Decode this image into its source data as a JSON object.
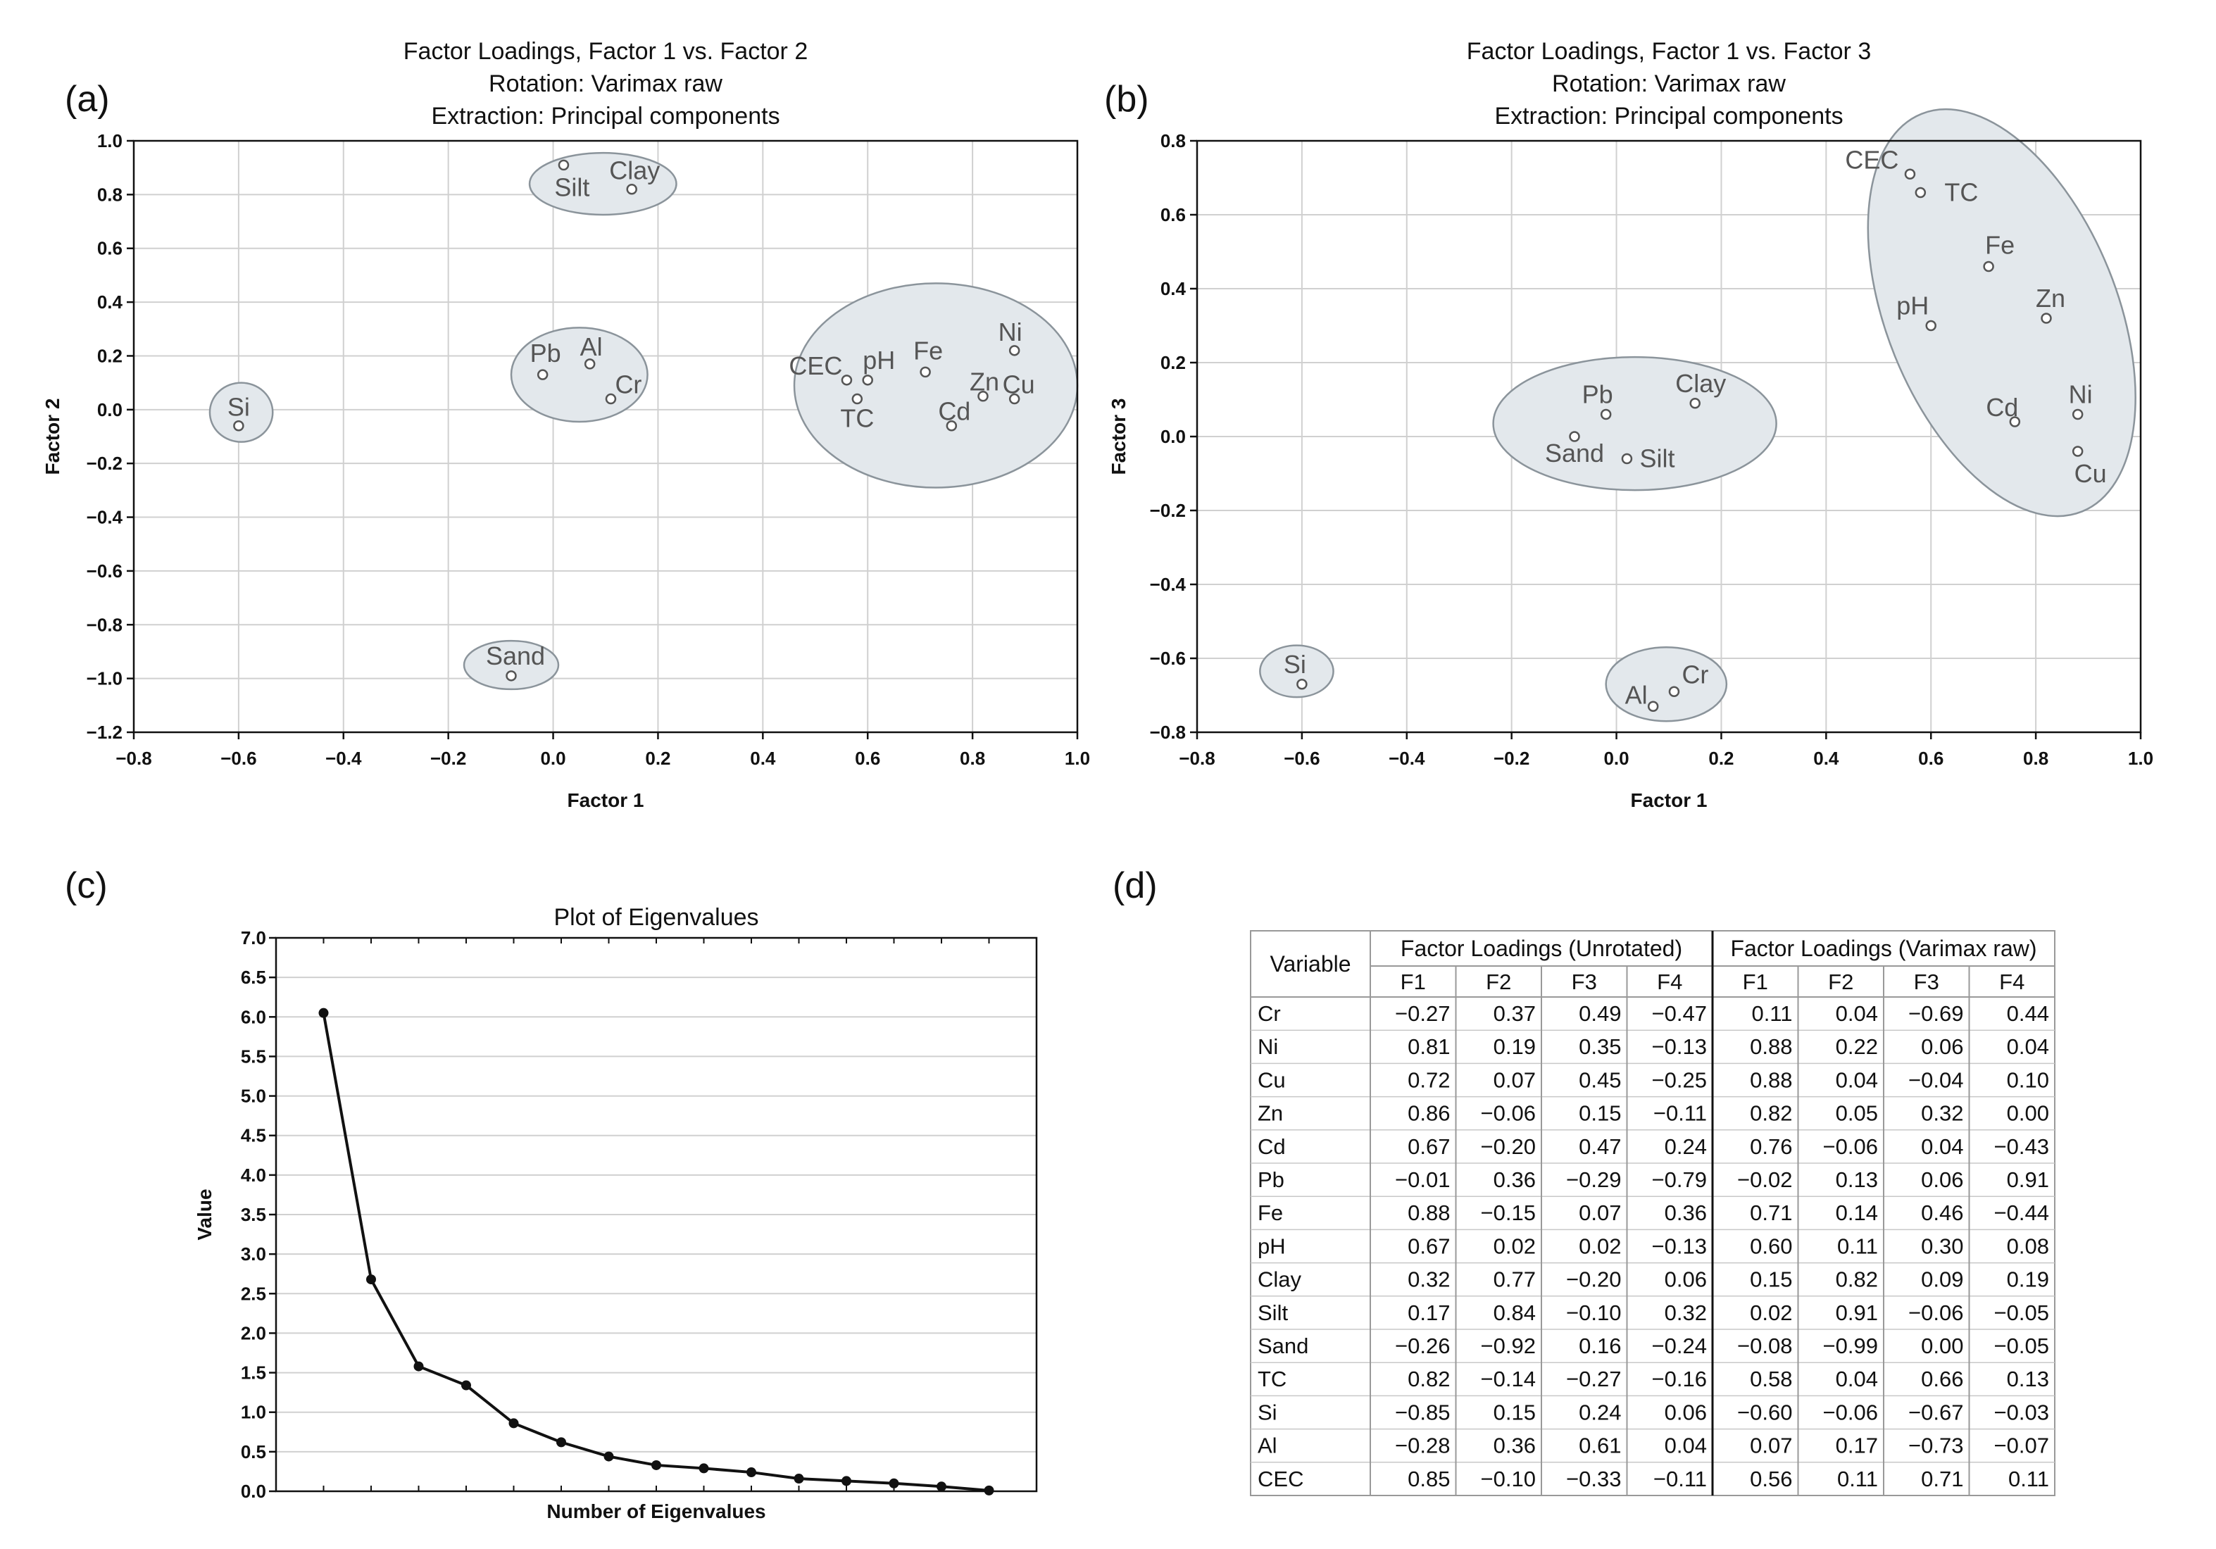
{
  "panel_labels": {
    "a": "(a)",
    "b": "(b)",
    "c": "(c)",
    "d": "(d)"
  },
  "chart_data": [
    {
      "id": "a",
      "type": "scatter",
      "title": [
        "Factor Loadings, Factor 1 vs. Factor 2",
        "Rotation: Varimax raw",
        "Extraction: Principal components"
      ],
      "xlabel": "Factor 1",
      "ylabel": "Factor 2",
      "xlim": [
        -0.8,
        1.0
      ],
      "ylim": [
        -1.2,
        1.0
      ],
      "xticks": [
        "−0.8",
        "−0.6",
        "−0.4",
        "−0.2",
        "0.0",
        "0.2",
        "0.4",
        "0.6",
        "0.8",
        "1.0"
      ],
      "yticks": [
        "−1.2",
        "−1.0",
        "−0.8",
        "−0.6",
        "−0.4",
        "−0.2",
        "0.0",
        "0.2",
        "0.4",
        "0.6",
        "0.8",
        "1.0"
      ],
      "grid": true,
      "points": [
        {
          "label": "Cr",
          "x": 0.11,
          "y": 0.04
        },
        {
          "label": "Ni",
          "x": 0.88,
          "y": 0.22
        },
        {
          "label": "Cu",
          "x": 0.88,
          "y": 0.04
        },
        {
          "label": "Zn",
          "x": 0.82,
          "y": 0.05
        },
        {
          "label": "Cd",
          "x": 0.76,
          "y": -0.06
        },
        {
          "label": "Pb",
          "x": -0.02,
          "y": 0.13
        },
        {
          "label": "Fe",
          "x": 0.71,
          "y": 0.14
        },
        {
          "label": "pH",
          "x": 0.6,
          "y": 0.11
        },
        {
          "label": "Clay",
          "x": 0.15,
          "y": 0.82
        },
        {
          "label": "Silt",
          "x": 0.02,
          "y": 0.91
        },
        {
          "label": "Sand",
          "x": -0.08,
          "y": -0.99
        },
        {
          "label": "TC",
          "x": 0.58,
          "y": 0.04
        },
        {
          "label": "Si",
          "x": -0.6,
          "y": -0.06
        },
        {
          "label": "Al",
          "x": 0.07,
          "y": 0.17
        },
        {
          "label": "CEC",
          "x": 0.56,
          "y": 0.11
        }
      ],
      "clusters": [
        {
          "cx": 0.095,
          "cy": 0.84,
          "rx": 0.14,
          "ry": 0.115,
          "angle": 0
        },
        {
          "cx": 0.05,
          "cy": 0.13,
          "rx": 0.13,
          "ry": 0.175,
          "angle": 0
        },
        {
          "cx": 0.73,
          "cy": 0.09,
          "rx": 0.27,
          "ry": 0.38,
          "angle": 0
        },
        {
          "cx": -0.595,
          "cy": -0.01,
          "rx": 0.06,
          "ry": 0.11,
          "angle": 0
        },
        {
          "cx": -0.08,
          "cy": -0.95,
          "rx": 0.09,
          "ry": 0.09,
          "angle": 0
        }
      ]
    },
    {
      "id": "b",
      "type": "scatter",
      "title": [
        "Factor Loadings, Factor 1 vs. Factor 3",
        "Rotation: Varimax raw",
        "Extraction: Principal components"
      ],
      "xlabel": "Factor 1",
      "ylabel": "Factor 3",
      "xlim": [
        -0.8,
        1.0
      ],
      "ylim": [
        -0.8,
        0.8
      ],
      "xticks": [
        "−0.8",
        "−0.6",
        "−0.4",
        "−0.2",
        "0.0",
        "0.2",
        "0.4",
        "0.6",
        "0.8",
        "1.0"
      ],
      "yticks": [
        "−0.8",
        "−0.6",
        "−0.4",
        "−0.2",
        "0.0",
        "0.2",
        "0.4",
        "0.6",
        "0.8"
      ],
      "grid": true,
      "points": [
        {
          "label": "Cr",
          "x": 0.11,
          "y": -0.69
        },
        {
          "label": "Ni",
          "x": 0.88,
          "y": 0.06
        },
        {
          "label": "Cu",
          "x": 0.88,
          "y": -0.04
        },
        {
          "label": "Zn",
          "x": 0.82,
          "y": 0.32
        },
        {
          "label": "Cd",
          "x": 0.76,
          "y": 0.04
        },
        {
          "label": "Pb",
          "x": -0.02,
          "y": 0.06
        },
        {
          "label": "Fe",
          "x": 0.71,
          "y": 0.46
        },
        {
          "label": "pH",
          "x": 0.6,
          "y": 0.3
        },
        {
          "label": "Clay",
          "x": 0.15,
          "y": 0.09
        },
        {
          "label": "Silt",
          "x": 0.02,
          "y": -0.06
        },
        {
          "label": "Sand",
          "x": -0.08,
          "y": 0.0
        },
        {
          "label": "TC",
          "x": 0.58,
          "y": 0.66
        },
        {
          "label": "Si",
          "x": -0.6,
          "y": -0.67
        },
        {
          "label": "Al",
          "x": 0.07,
          "y": -0.73
        },
        {
          "label": "CEC",
          "x": 0.56,
          "y": 0.71
        }
      ],
      "clusters": [
        {
          "cx": 0.035,
          "cy": 0.035,
          "rx": 0.27,
          "ry": 0.18,
          "angle": 0
        },
        {
          "cx": 0.735,
          "cy": 0.335,
          "rx": 0.22,
          "ry": 0.58,
          "angle": -22
        },
        {
          "cx": -0.61,
          "cy": -0.635,
          "rx": 0.07,
          "ry": 0.07,
          "angle": 0
        },
        {
          "cx": 0.095,
          "cy": -0.67,
          "rx": 0.115,
          "ry": 0.1,
          "angle": 0
        }
      ]
    },
    {
      "id": "c",
      "type": "line",
      "title": "Plot of Eigenvalues",
      "xlabel": "Number of Eigenvalues",
      "ylabel": "Value",
      "ylim": [
        0,
        7.0
      ],
      "yticks": [
        "0.0",
        "0.5",
        "1.0",
        "1.5",
        "2.0",
        "2.5",
        "3.0",
        "3.5",
        "4.0",
        "4.5",
        "5.0",
        "5.5",
        "6.0",
        "6.5",
        "7.0"
      ],
      "grid": true,
      "x": [
        1,
        2,
        3,
        4,
        5,
        6,
        7,
        8,
        9,
        10,
        11,
        12,
        13,
        14,
        15
      ],
      "values": [
        6.05,
        2.68,
        1.58,
        1.34,
        0.86,
        0.62,
        0.44,
        0.33,
        0.29,
        0.24,
        0.16,
        0.13,
        0.1,
        0.06,
        0.01
      ]
    },
    {
      "id": "d",
      "type": "table",
      "variable_header": "Variable",
      "group_headers": [
        "Factor Loadings (Unrotated)",
        "Factor Loadings (Varimax raw)"
      ],
      "sub_headers": [
        "F1",
        "F2",
        "F3",
        "F4",
        "F1",
        "F2",
        "F3",
        "F4"
      ],
      "highlight_color": "#e8231c",
      "rows": [
        {
          "variable": "Cr",
          "values": [
            "−0.27",
            "0.37",
            "0.49",
            "−0.47",
            "0.11",
            "0.04",
            "−0.69",
            "0.44"
          ],
          "highlight": []
        },
        {
          "variable": "Ni",
          "values": [
            "0.81",
            "0.19",
            "0.35",
            "−0.13",
            "0.88",
            "0.22",
            "0.06",
            "0.04"
          ],
          "highlight": [
            0,
            4
          ]
        },
        {
          "variable": "Cu",
          "values": [
            "0.72",
            "0.07",
            "0.45",
            "−0.25",
            "0.88",
            "0.04",
            "−0.04",
            "0.10"
          ],
          "highlight": [
            0,
            4
          ]
        },
        {
          "variable": "Zn",
          "values": [
            "0.86",
            "−0.06",
            "0.15",
            "−0.11",
            "0.82",
            "0.05",
            "0.32",
            "0.00"
          ],
          "highlight": [
            0,
            4
          ]
        },
        {
          "variable": "Cd",
          "values": [
            "0.67",
            "−0.20",
            "0.47",
            "0.24",
            "0.76",
            "−0.06",
            "0.04",
            "−0.43"
          ],
          "highlight": [
            4
          ]
        },
        {
          "variable": "Pb",
          "values": [
            "−0.01",
            "0.36",
            "−0.29",
            "−0.79",
            "−0.02",
            "0.13",
            "0.06",
            "0.91"
          ],
          "highlight": [
            3,
            7
          ]
        },
        {
          "variable": "Fe",
          "values": [
            "0.88",
            "−0.15",
            "0.07",
            "0.36",
            "0.71",
            "0.14",
            "0.46",
            "−0.44"
          ],
          "highlight": [
            0,
            4
          ]
        },
        {
          "variable": "pH",
          "values": [
            "0.67",
            "0.02",
            "0.02",
            "−0.13",
            "0.60",
            "0.11",
            "0.30",
            "0.08"
          ],
          "highlight": []
        },
        {
          "variable": "Clay",
          "values": [
            "0.32",
            "0.77",
            "−0.20",
            "0.06",
            "0.15",
            "0.82",
            "0.09",
            "0.19"
          ],
          "highlight": [
            1,
            5
          ]
        },
        {
          "variable": "Silt",
          "values": [
            "0.17",
            "0.84",
            "−0.10",
            "0.32",
            "0.02",
            "0.91",
            "−0.06",
            "−0.05"
          ],
          "highlight": [
            1,
            5
          ]
        },
        {
          "variable": "Sand",
          "values": [
            "−0.26",
            "−0.92",
            "0.16",
            "−0.24",
            "−0.08",
            "−0.99",
            "0.00",
            "−0.05"
          ],
          "highlight": [
            1,
            5
          ]
        },
        {
          "variable": "TC",
          "values": [
            "0.82",
            "−0.14",
            "−0.27",
            "−0.16",
            "0.58",
            "0.04",
            "0.66",
            "0.13"
          ],
          "highlight": [
            0
          ]
        },
        {
          "variable": "Si",
          "values": [
            "−0.85",
            "0.15",
            "0.24",
            "0.06",
            "−0.60",
            "−0.06",
            "−0.67",
            "−0.03"
          ],
          "highlight": [
            0
          ]
        },
        {
          "variable": "Al",
          "values": [
            "−0.28",
            "0.36",
            "0.61",
            "0.04",
            "0.07",
            "0.17",
            "−0.73",
            "−0.07"
          ],
          "highlight": [
            6
          ]
        },
        {
          "variable": "CEC",
          "values": [
            "0.85",
            "−0.10",
            "−0.33",
            "−0.11",
            "0.56",
            "0.11",
            "0.71",
            "0.11"
          ],
          "highlight": [
            0,
            6
          ]
        }
      ]
    }
  ]
}
